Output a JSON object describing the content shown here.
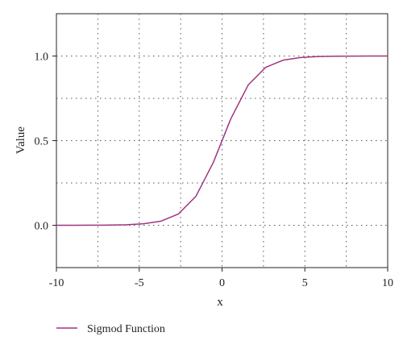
{
  "chart_data": {
    "type": "line",
    "title": "",
    "xlabel": "x",
    "ylabel": "Value",
    "xlim": [
      -10,
      10
    ],
    "ylim": [
      -0.25,
      1.25
    ],
    "x_ticks": [
      -10,
      -5,
      0,
      5,
      10
    ],
    "x_tick_labels": [
      "-10",
      "-5",
      "0",
      "5",
      "10"
    ],
    "y_ticks": [
      0.0,
      0.5,
      1.0
    ],
    "y_tick_labels": [
      "0.0",
      "0.5",
      "1.0"
    ],
    "grid": true,
    "grid_style": "dotted",
    "legend_position": "bottom-left",
    "series": [
      {
        "name": "Sigmod Function",
        "color": "#a0357f",
        "x": [
          -10,
          -8.95,
          -7.89,
          -6.84,
          -5.79,
          -4.74,
          -3.68,
          -2.63,
          -1.58,
          -0.53,
          0.53,
          1.58,
          2.63,
          3.68,
          4.74,
          5.79,
          6.84,
          7.89,
          8.95,
          10
        ],
        "y": [
          0.0,
          0.0001,
          0.0004,
          0.0011,
          0.0031,
          0.0087,
          0.0246,
          0.0671,
          0.171,
          0.3705,
          0.6295,
          0.829,
          0.9329,
          0.9754,
          0.9913,
          0.9969,
          0.9989,
          0.9996,
          0.9999,
          1.0
        ]
      }
    ]
  }
}
